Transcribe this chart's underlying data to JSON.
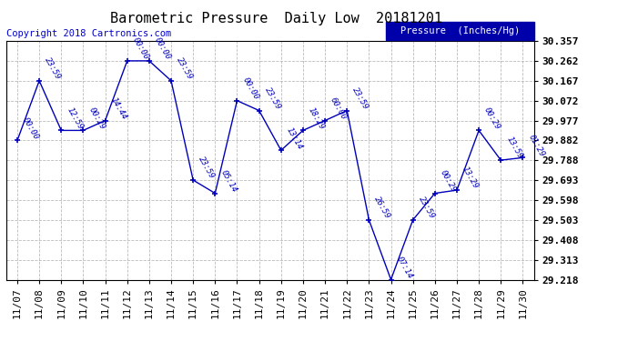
{
  "title": "Barometric Pressure  Daily Low  20181201",
  "copyright": "Copyright 2018 Cartronics.com",
  "legend_label": "Pressure  (Inches/Hg)",
  "x_labels": [
    "11/07",
    "11/08",
    "11/09",
    "11/10",
    "11/11",
    "11/12",
    "11/13",
    "11/14",
    "11/15",
    "11/16",
    "11/17",
    "11/18",
    "11/19",
    "11/20",
    "11/21",
    "11/22",
    "11/23",
    "11/24",
    "11/25",
    "11/26",
    "11/27",
    "11/28",
    "11/29",
    "11/30"
  ],
  "y_values": [
    29.882,
    30.167,
    29.93,
    29.93,
    29.977,
    30.262,
    30.262,
    30.167,
    29.693,
    29.63,
    30.072,
    30.025,
    29.835,
    29.93,
    29.977,
    30.025,
    29.503,
    29.218,
    29.503,
    29.63,
    29.645,
    29.93,
    29.788,
    29.8
  ],
  "point_labels": [
    "00:00",
    "23:59",
    "12:59",
    "00:29",
    "14:44",
    "00:00",
    "00:00",
    "23:59",
    "23:59",
    "05:14",
    "00:00",
    "23:59",
    "13:14",
    "18:29",
    "60:00",
    "23:59",
    "26:59",
    "07:14",
    "23:59",
    "00:29",
    "13:29",
    "00:29",
    "13:59",
    "01:29"
  ],
  "ylim_min": 29.218,
  "ylim_max": 30.357,
  "y_ticks": [
    29.218,
    29.313,
    29.408,
    29.503,
    29.598,
    29.693,
    29.788,
    29.882,
    29.977,
    30.072,
    30.167,
    30.262,
    30.357
  ],
  "line_color": "#0000bb",
  "marker_color": "#0000bb",
  "bg_color": "#ffffff",
  "grid_color": "#aaaaaa",
  "title_color": "#000000",
  "legend_bg": "#0000aa",
  "legend_text_color": "#ffffff",
  "copyright_color": "#0000cc",
  "title_fontsize": 11,
  "tick_fontsize": 8,
  "label_fontsize": 6.5,
  "copyright_fontsize": 7.5
}
